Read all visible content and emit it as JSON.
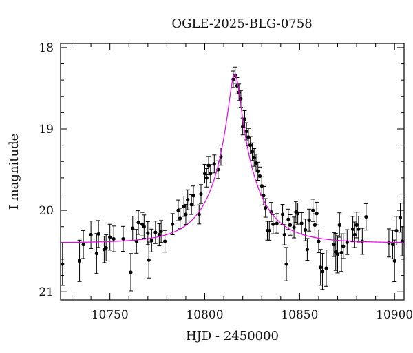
{
  "chart_data": {
    "type": "scatter",
    "title": "OGLE-2025-BLG-0758",
    "xlabel": "HJD - 2450000",
    "ylabel": "I magnitude",
    "xlim": [
      10724,
      10905
    ],
    "ylim": [
      21.1,
      17.95
    ],
    "y_inverted": true,
    "grid": false,
    "x_ticks": [
      10750,
      10800,
      10850,
      10900
    ],
    "y_ticks": [
      18,
      19,
      20,
      21
    ],
    "colors": {
      "points": "#000000",
      "model": "#e800e8",
      "axes": "#000000"
    },
    "series": [
      {
        "type": "scatter_errorbars",
        "x": [
          10725,
          10734,
          10736,
          10740,
          10743,
          10744,
          10747,
          10748,
          10750,
          10752,
          10757,
          10761,
          10762,
          10764,
          10765,
          10767,
          10768,
          10770,
          10770.5,
          10772,
          10774,
          10776,
          10777,
          10779,
          10783,
          10786,
          10787,
          10789,
          10790,
          10791,
          10793,
          10794,
          10797,
          10798,
          10800,
          10801,
          10802,
          10803,
          10805,
          10807,
          10808.5,
          10815,
          10816,
          10817,
          10818,
          10819,
          10820,
          10821,
          10822,
          10823,
          10824,
          10825,
          10826,
          10827,
          10828,
          10829,
          10830,
          10831,
          10832,
          10833,
          10834,
          10835,
          10836,
          10838,
          10841,
          10842,
          10843,
          10844,
          10845,
          10847,
          10848,
          10849,
          10851,
          10853,
          10854,
          10855,
          10857,
          10858,
          10859,
          10860,
          10861,
          10862,
          10864,
          10868,
          10869,
          10870,
          10871,
          10872,
          10873,
          10875,
          10878,
          10879,
          10880,
          10881,
          10883,
          10885,
          10897,
          10899,
          10900,
          10901,
          10903,
          10904
        ],
        "y": [
          20.66,
          20.62,
          20.42,
          20.3,
          20.53,
          20.29,
          20.48,
          20.46,
          20.33,
          20.35,
          20.35,
          20.76,
          20.22,
          20.38,
          20.15,
          20.17,
          20.2,
          20.28,
          20.61,
          20.37,
          20.27,
          20.3,
          20.26,
          20.38,
          20.17,
          20.0,
          20.1,
          19.95,
          20.05,
          19.87,
          19.93,
          19.82,
          20.05,
          19.8,
          19.55,
          19.6,
          19.45,
          19.55,
          19.43,
          19.5,
          19.34,
          18.39,
          18.34,
          18.47,
          18.55,
          18.63,
          18.97,
          18.88,
          19.03,
          19.1,
          19.2,
          19.28,
          19.35,
          19.42,
          19.52,
          19.58,
          19.7,
          19.82,
          19.97,
          20.25,
          20.25,
          20.02,
          20.17,
          20.16,
          20.05,
          20.3,
          20.66,
          20.11,
          20.18,
          20.21,
          20.02,
          20.04,
          20.16,
          20.24,
          20.48,
          20.12,
          20.0,
          20.18,
          20.04,
          20.38,
          20.7,
          20.75,
          20.71,
          20.42,
          20.51,
          20.54,
          20.18,
          20.52,
          20.44,
          20.39,
          20.23,
          20.3,
          20.18,
          20.23,
          20.38,
          20.08,
          20.4,
          20.42,
          20.62,
          20.25,
          20.09,
          20.38
        ]
      },
      {
        "name": "",
        "type": "line",
        "model": "point-lens microlensing fit",
        "t0": 10815.8,
        "peak_mag": 18.33,
        "baseline_mag": 20.4,
        "x_range": [
          10724,
          10905
        ]
      }
    ]
  }
}
